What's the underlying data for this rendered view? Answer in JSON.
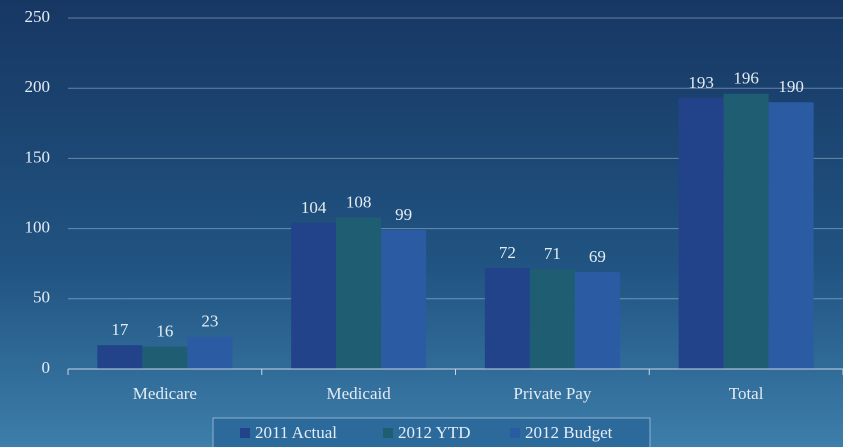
{
  "chart_data": {
    "type": "bar",
    "categories": [
      "Medicare",
      "Medicaid",
      "Private Pay",
      "Total"
    ],
    "series": [
      {
        "name": "2011 Actual",
        "color": "#22438a",
        "values": [
          17,
          104,
          72,
          193
        ]
      },
      {
        "name": "2012 YTD",
        "color": "#1f5e72",
        "values": [
          16,
          108,
          71,
          196
        ]
      },
      {
        "name": "2012 Budget",
        "color": "#2b5ba3",
        "values": [
          23,
          99,
          69,
          190
        ]
      }
    ],
    "ylim": [
      0,
      250
    ],
    "yticks": [
      0,
      50,
      100,
      150,
      200,
      250
    ],
    "grid": true,
    "legend": "bottom"
  }
}
